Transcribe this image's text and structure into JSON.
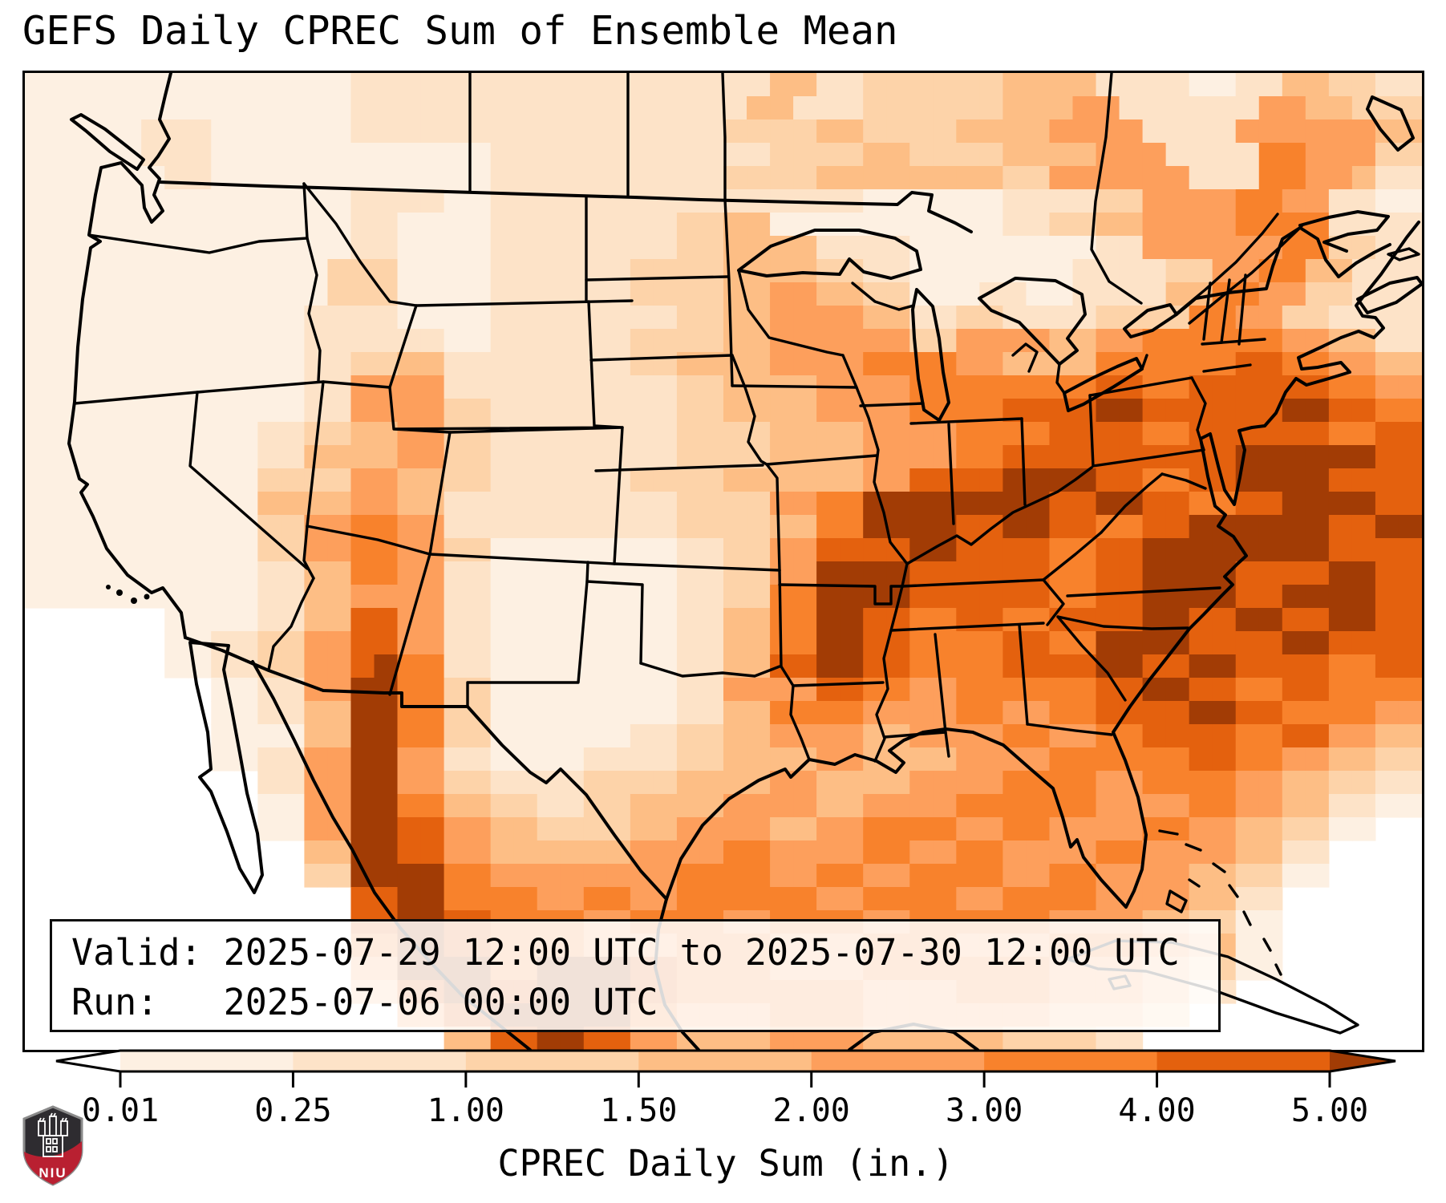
{
  "title": "GEFS Daily CPREC Sum of Ensemble Mean",
  "info_box": {
    "valid_line": "Valid: 2025-07-29 12:00 UTC to 2025-07-30 12:00 UTC",
    "run_line": "Run:   2025-07-06 00:00 UTC"
  },
  "colorbar": {
    "label": "CPREC Daily Sum (in.)",
    "ticks": [
      "0.01",
      "0.25",
      "1.00",
      "1.50",
      "2.00",
      "3.00",
      "4.00",
      "5.00"
    ],
    "segment_colors": [
      "#fdf0e2",
      "#fde3c8",
      "#fdd3a9",
      "#fdbe85",
      "#fd9f5c",
      "#f8822c",
      "#e4610e"
    ],
    "under_color": "#ffffff",
    "over_color": "#a23c05",
    "outline_color": "#000000"
  },
  "logo": {
    "text": "NIU",
    "shield_dark": "#2e2c30",
    "shield_red": "#b92031",
    "shield_border": "#8a8a8a"
  },
  "chart_data": {
    "type": "heatmap",
    "title": "GEFS Daily CPREC Sum of Ensemble Mean",
    "units": "in.",
    "bins": [
      0.01,
      0.25,
      1.0,
      1.5,
      2.0,
      3.0,
      4.0,
      5.0
    ],
    "legend": {
      "0": {
        "range": "< 0.01",
        "color": "#ffffff"
      },
      "1": {
        "range": "0.01-0.25",
        "color": "#fdf0e2"
      },
      "2": {
        "range": "0.25-1.00",
        "color": "#fde3c8"
      },
      "3": {
        "range": "1.00-1.50",
        "color": "#fdd3a9"
      },
      "4": {
        "range": "1.50-2.00",
        "color": "#fdbe85"
      },
      "5": {
        "range": "2.00-3.00",
        "color": "#fd9f5c"
      },
      "6": {
        "range": "3.00-4.00",
        "color": "#f8822c"
      },
      "7": {
        "range": "4.00-5.00",
        "color": "#e4610e"
      },
      "8": {
        "range": "> 5.00",
        "color": "#a23c05"
      }
    },
    "grid": {
      "cols": 60,
      "rows_count": 42,
      "rows": [
        "111111111111112222222222222222224422333333444422221122443322",
        "111111111111112222222222222222244222333333444552222225544333",
        "111112221111112222222222222222333344333344445555222255555544",
        "111112221111111111112222222222223333443333444455522226655533",
        "111111221111111111112222222222333344444444335555552226655422",
        "111111111111112222112222222222222222111111222233555566552211",
        "111111111111112211112222222233441111111111223344555566662222",
        "111111111111112211112222222233444422221111111122555555663322",
        "111111111111133311112222223333444433221111111222233556644222",
        "111111111111133311112222223333445544331112211222244665533222",
        "111111111111222211112222222233445555442233222233336655332222",
        "111111111111222222112222223333445555553355554455666666554422",
        "111111111111223344222222223344445555666655444466666677665544",
        "111111111111225555222222222233444455556666666677667777776655",
        "111111111111225555332222222233444455556666777788777777887766",
        "111111111122334455332222222233334444555566667777667777776677",
        "111111111122444455332222222233334444555566777777777788888877",
        "111111111133335544332222223333444444557777888877667788887777",
        "111111111144445544222222222233335566888888887788776677888877",
        "111111111133556655222222222233334466888877887766778888887788",
        "111111111133556655331111111122335577778877776677888888887777",
        "111111111122446655221111111122335588887777776677888877778877",
        "111111111122445555221111111122336688887777776677888877888877",
        "000000111122447755221111111122446688776677667777887788778877",
        "000000112233557755221111111122446688776666776688887777887777",
        "000000112233557866221111111122447788776666777788778877776677",
        "000000001122558866331111111122555577665566666677887766776666",
        "000000001122448866331111111122446666555566556677778877666655",
        "000000001111448866331111112233445555445555665566777766775544",
        "000000001122558855221111222233444455444455556666667766554433",
        "000000000022558855332222333344445544445555666655666655443322",
        "000000000011558866443322334444555544555566666655556655442211",
        "000000000011558877554433334455554455666655665555665544331100",
        "000000000000448877554444445555665555665566555566555544220000",
        "000000000000338888665555555566665566556666556655554433110000",
        "000000000000007788666655665566666655666655666655554422000000",
        "000000000000007788776666556666556666556666665555443311000000",
        "000000000000006688776666555566665555666655556666554411000000",
        "000000000000005588886688887766665555666666665555443311000000",
        "000000000000004477887788887766666666555566665555442200000000",
        "000000000000000055778888886655556666555555554444330000000000",
        "000000000000000000447788775544445555444444333322000000000000"
      ]
    }
  }
}
